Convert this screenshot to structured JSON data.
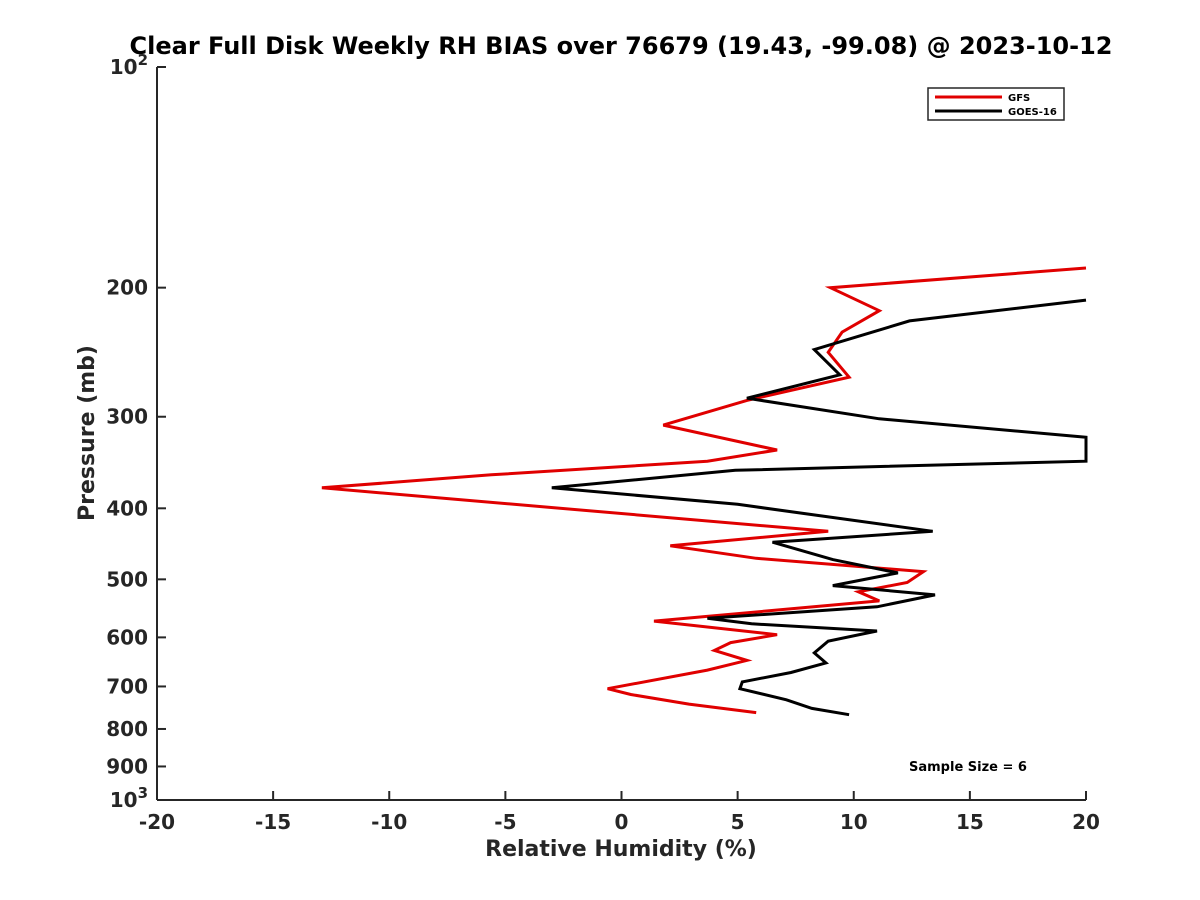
{
  "chart_data": {
    "type": "line",
    "title": "Clear Full Disk Weekly RH BIAS over 76679 (19.43, -99.08) @ 2023-10-12",
    "xlabel": "Relative Humidity (%)",
    "ylabel": "Pressure (mb)",
    "xlim": [
      -20,
      20
    ],
    "ylim": [
      100,
      1000
    ],
    "y_scale": "log",
    "y_reversed": true,
    "x_ticks": [
      -20,
      -15,
      -10,
      -5,
      0,
      5,
      10,
      15,
      20
    ],
    "x_tick_labels": [
      "-20",
      "-15",
      "-10",
      "-5",
      "0",
      "5",
      "10",
      "15",
      "20"
    ],
    "y_ticks": [
      200,
      300,
      400,
      500,
      600,
      700,
      800,
      900
    ],
    "y_tick_labels": [
      "200",
      "300",
      "400",
      "500",
      "600",
      "700",
      "800",
      "900"
    ],
    "y_end_labels": {
      "top_base": "10",
      "top_exp": "2",
      "bottom_base": "10",
      "bottom_exp": "3"
    },
    "grid": false,
    "legend_position": "top-right",
    "annotation": "Sample Size = 6",
    "series": [
      {
        "name": "GFS",
        "color": "#e00000",
        "x": [
          5.8,
          2.9,
          0.4,
          -0.6,
          3.7,
          5.4,
          4.0,
          4.7,
          6.7,
          1.4,
          11.1,
          10.2,
          12.3,
          13.0,
          5.8,
          2.1,
          8.9,
          -12.9,
          -5.6,
          3.7,
          6.7,
          1.8,
          5.4,
          9.8,
          8.9,
          9.5,
          11.1,
          9.0,
          20.0
        ],
        "y": [
          760,
          740,
          718,
          705,
          665,
          645,
          625,
          610,
          595,
          570,
          535,
          520,
          505,
          488,
          468,
          450,
          430,
          375,
          360,
          345,
          333,
          308,
          285,
          265,
          245,
          230,
          215,
          200,
          188
        ]
      },
      {
        "name": "GOES-16",
        "color": "#000000",
        "x": [
          9.8,
          8.2,
          7.1,
          5.1,
          5.2,
          7.3,
          8.8,
          8.3,
          8.9,
          11.0,
          5.6,
          3.7,
          11.0,
          13.5,
          9.1,
          11.9,
          9.1,
          6.5,
          13.4,
          5.0,
          -3.0,
          4.9,
          20.0,
          20.0,
          11.1,
          5.4,
          9.4,
          8.3,
          12.4,
          20.0
        ],
        "y": [
          765,
          750,
          730,
          705,
          690,
          670,
          650,
          630,
          607,
          588,
          575,
          565,
          545,
          525,
          510,
          490,
          470,
          445,
          430,
          395,
          375,
          355,
          345,
          320,
          302,
          283,
          263,
          243,
          222,
          208
        ]
      }
    ]
  }
}
